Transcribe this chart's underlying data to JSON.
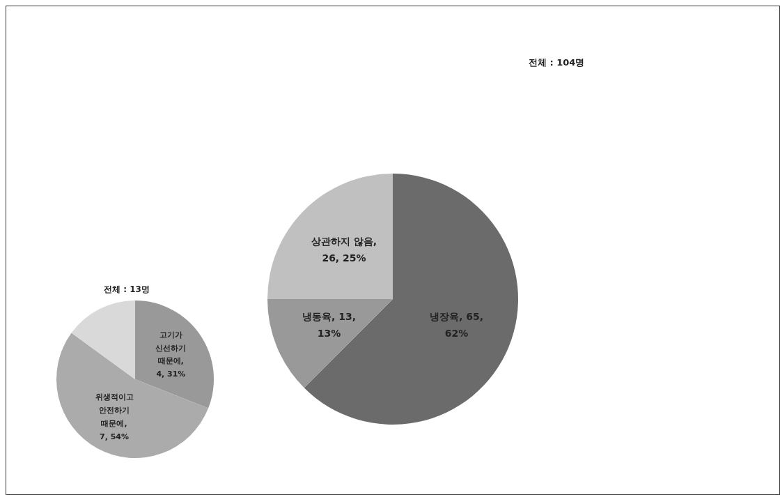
{
  "chart_data": [
    {
      "type": "pie",
      "categories": [
        "고기가 신선하기 때문에",
        "위생적이고 안전하기 때문에",
        null
      ],
      "values": [
        31,
        54,
        15
      ],
      "colors": [
        "#999999",
        "#ababab",
        "#d9d9d9"
      ],
      "value_labels": [
        ", 4, 31%",
        ", 7, 54%",
        null
      ],
      "annotations": [
        "전체 : 13명"
      ]
    },
    {
      "type": "pie",
      "categories": [
        "냉장육",
        "냉동육",
        "상관하지 않음"
      ],
      "values": [
        65,
        13,
        26
      ],
      "colors": [
        "#6b6b6b",
        "#999999",
        "#c0c0c0"
      ],
      "value_labels": [
        ", 65, 62%",
        ", 13, 13%",
        ", 26, 25%"
      ],
      "annotations": [
        "전체 : 104명"
      ]
    }
  ]
}
